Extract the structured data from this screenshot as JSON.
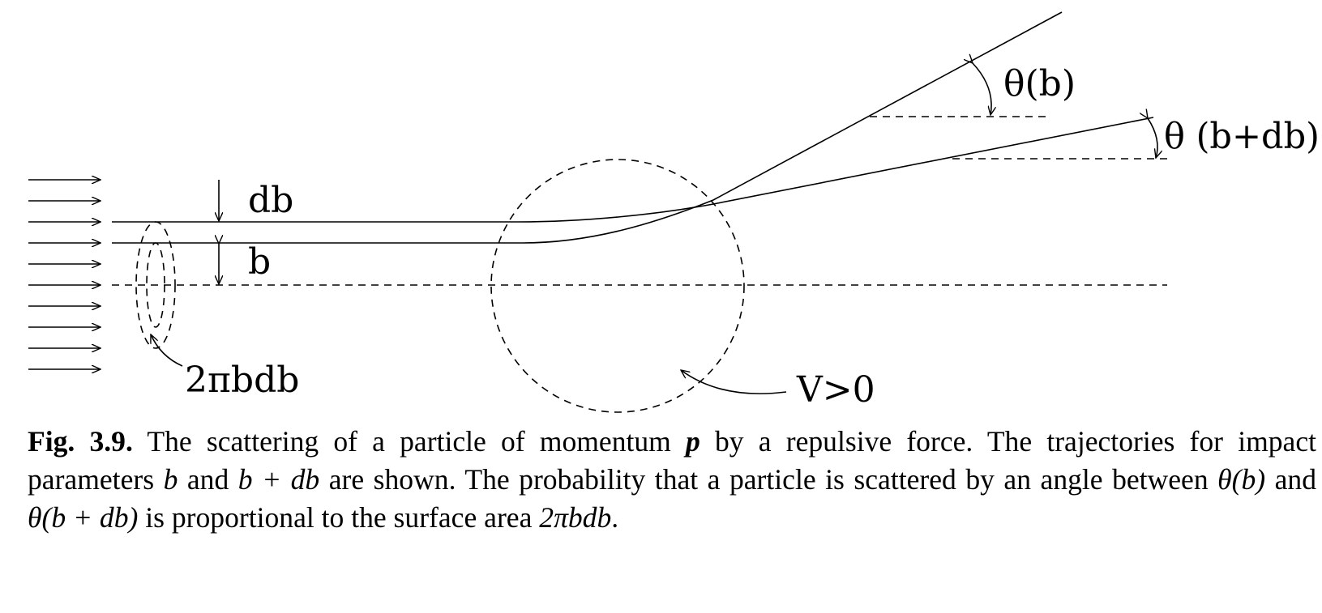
{
  "figure": {
    "labels": {
      "db": "db",
      "b": "b",
      "ring_area": "2πbdb",
      "potential": "V>0",
      "theta_b": "θ(b)",
      "theta_b_db": "θ (b+db)"
    }
  },
  "caption": {
    "fig_num": "Fig. 3.9.",
    "t1": " The scattering of a particle of momentum ",
    "p": "p",
    "t2": " by a repulsive force. The trajectories for impact parameters ",
    "b1": "b",
    "t3": " and ",
    "b_plus_db": "b + db",
    "t4": " are shown. The probability that a particle is scattered by an angle between ",
    "theta1": "θ(b)",
    "t5": " and ",
    "theta2": "θ(b + db)",
    "t6": " is proportional to the surface area ",
    "area": "2πbdb",
    "t7": "."
  }
}
